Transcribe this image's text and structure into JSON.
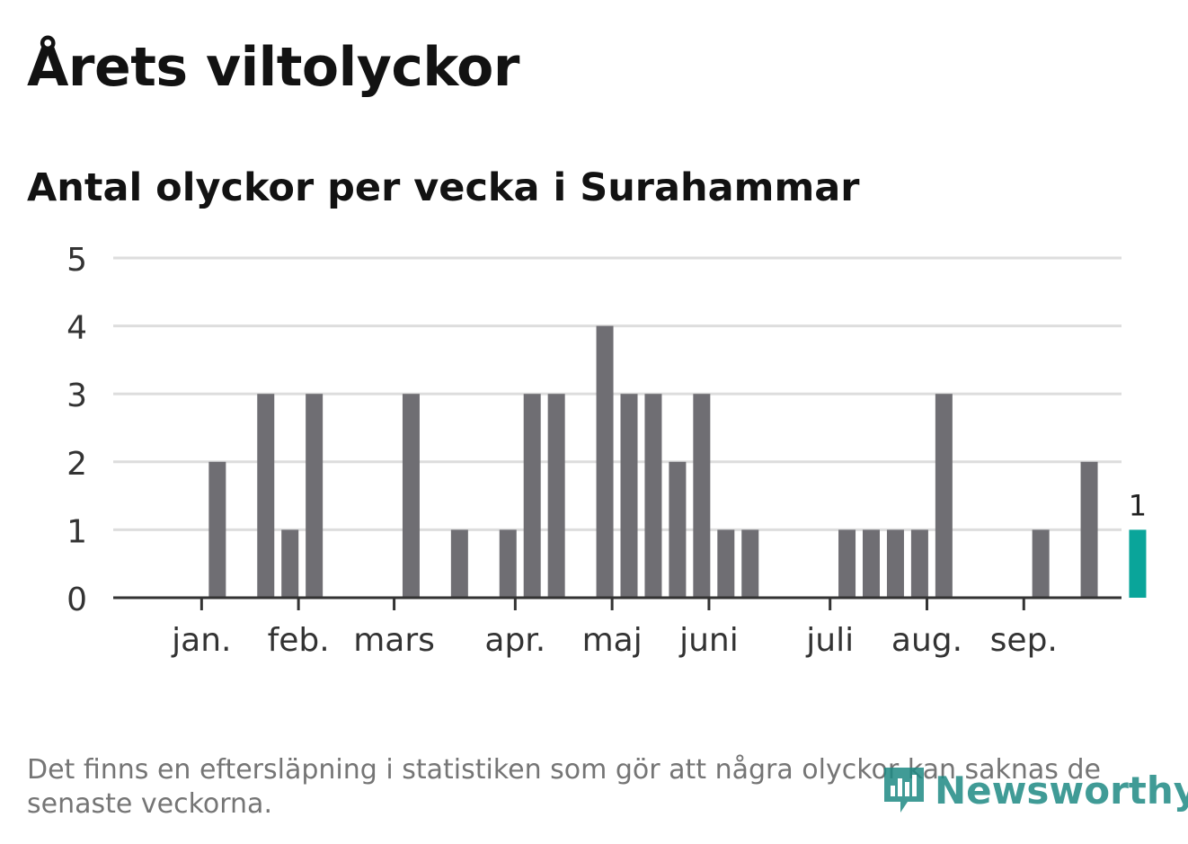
{
  "title": "Årets viltolyckor",
  "subtitle": "Antal olyckor per vecka i Surahammar",
  "footnote": "Det finns en eftersläpning i statistiken som gör att några olyckor kan saknas de senaste veckorna.",
  "logo_text": "Newsworthy",
  "colors": {
    "bar": "#6f6e73",
    "highlight": "#0aa59a",
    "grid": "#dddddd",
    "axis": "#333333"
  },
  "chart_data": {
    "type": "bar",
    "title": "Antal olyckor per vecka i Surahammar",
    "xlabel": "",
    "ylabel": "",
    "ylim": [
      0,
      5
    ],
    "yticks": [
      0,
      1,
      2,
      3,
      4,
      5
    ],
    "grid": true,
    "x": [
      1,
      2,
      3,
      4,
      5,
      6,
      7,
      8,
      9,
      10,
      11,
      12,
      13,
      14,
      15,
      16,
      17,
      18,
      19,
      20,
      21,
      22,
      23,
      24,
      25,
      26,
      27,
      28,
      29,
      30,
      31,
      32,
      33,
      34,
      35,
      36,
      37,
      38,
      39,
      40,
      41,
      42
    ],
    "values": [
      0,
      0,
      0,
      2,
      0,
      3,
      1,
      3,
      0,
      0,
      0,
      3,
      0,
      1,
      0,
      1,
      3,
      3,
      0,
      4,
      3,
      3,
      2,
      3,
      1,
      1,
      0,
      0,
      0,
      1,
      1,
      1,
      1,
      3,
      0,
      0,
      0,
      1,
      0,
      2,
      0,
      1
    ],
    "highlight_index": 41,
    "highlight_label": "1",
    "month_ticks": [
      {
        "label": "jan.",
        "week": 3.35
      },
      {
        "label": "feb.",
        "week": 7.35
      },
      {
        "label": "mars",
        "week": 11.3
      },
      {
        "label": "apr.",
        "week": 16.3
      },
      {
        "label": "maj",
        "week": 20.3
      },
      {
        "label": "juni",
        "week": 24.3
      },
      {
        "label": "juli",
        "week": 29.3
      },
      {
        "label": "aug.",
        "week": 33.3
      },
      {
        "label": "sep.",
        "week": 37.3
      }
    ]
  }
}
